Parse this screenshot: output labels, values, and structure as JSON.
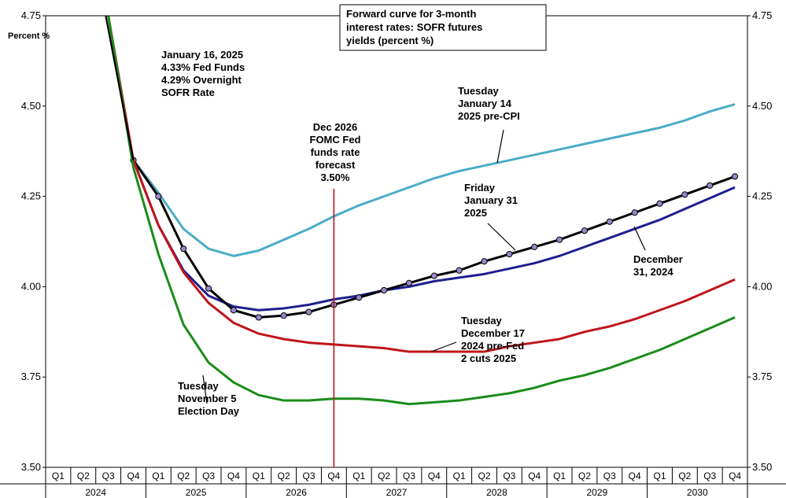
{
  "chart_data": {
    "type": "line",
    "title": "",
    "ylabel": "Percent %",
    "ylim": [
      3.5,
      4.75
    ],
    "yticks": [
      {
        "value": 4.75,
        "label": "4.75"
      },
      {
        "value": 4.5,
        "label": "4.50"
      },
      {
        "value": 4.25,
        "label": "4.25"
      },
      {
        "value": 4.0,
        "label": "4.00"
      },
      {
        "value": 3.75,
        "label": "3.75"
      },
      {
        "value": 3.5,
        "label": "3.50"
      }
    ],
    "years": [
      "2024",
      "2025",
      "2026",
      "2027",
      "2028",
      "2029",
      "2030"
    ],
    "quarters": [
      "Q1",
      "Q2",
      "Q3",
      "Q4"
    ],
    "grid": false,
    "colors": {
      "jan14": "#4bacc6",
      "jan31": "#000000",
      "dec31": "#1f1f8f",
      "dec17": "#c0141c",
      "nov5": "#1a8c1a",
      "fomc": "#c0141c"
    },
    "series": [
      {
        "key": "jan14",
        "name": "Tuesday January 14 2025 pre-CPI",
        "values": [
          null,
          null,
          null,
          4.35,
          4.26,
          4.16,
          4.105,
          4.085,
          4.1,
          4.13,
          4.16,
          4.195,
          4.225,
          4.25,
          4.275,
          4.3,
          4.32,
          4.335,
          4.35,
          4.365,
          4.38,
          4.395,
          4.41,
          4.425,
          4.44,
          4.46,
          4.485,
          4.505
        ]
      },
      {
        "key": "dec31",
        "name": "December 31, 2024",
        "values": [
          null,
          null,
          null,
          4.35,
          4.17,
          4.045,
          3.975,
          3.945,
          3.935,
          3.94,
          3.95,
          3.965,
          3.975,
          3.99,
          4.0,
          4.015,
          4.025,
          4.035,
          4.05,
          4.065,
          4.085,
          4.11,
          4.135,
          4.16,
          4.185,
          4.215,
          4.245,
          4.275
        ]
      },
      {
        "key": "jan31",
        "name": "Friday January 31 2025",
        "markers": true,
        "values": [
          null,
          null,
          null,
          4.35,
          4.25,
          4.105,
          3.995,
          3.935,
          3.915,
          3.92,
          3.93,
          3.95,
          3.97,
          3.99,
          4.01,
          4.03,
          4.045,
          4.07,
          4.09,
          4.11,
          4.13,
          4.155,
          4.18,
          4.205,
          4.23,
          4.255,
          4.28,
          4.305
        ]
      },
      {
        "key": "dec17",
        "name": "Tuesday December 17 2024 pre-Fed 2 cuts 2025",
        "values": [
          null,
          null,
          4.75,
          4.35,
          4.17,
          4.04,
          3.955,
          3.9,
          3.87,
          3.855,
          3.845,
          3.84,
          3.835,
          3.83,
          3.82,
          3.82,
          3.82,
          null,
          null,
          3.845,
          3.855,
          3.875,
          3.89,
          3.91,
          3.935,
          3.96,
          3.99,
          4.02
        ]
      },
      {
        "key": "nov5",
        "name": "Tuesday November 5 Election Day",
        "values": [
          null,
          null,
          4.75,
          4.33,
          4.09,
          3.895,
          3.79,
          3.735,
          3.7,
          3.685,
          3.685,
          3.69,
          3.69,
          3.685,
          3.675,
          3.68,
          3.685,
          3.695,
          3.705,
          3.72,
          3.74,
          3.755,
          3.775,
          3.8,
          3.825,
          3.855,
          3.885,
          3.915
        ]
      }
    ],
    "fomc_marker": {
      "quarter_index": 11
    },
    "annotations": {
      "box": "Forward curve for 3-month interest rates: SOFR futures yields (percent %)",
      "fed": [
        "January 16, 2025",
        "4.33% Fed Funds",
        "4.29% Overnight",
        "SOFR Rate"
      ],
      "fomc": [
        "Dec 2026",
        "FOMC Fed",
        "funds rate",
        "forecast",
        "3.50%"
      ],
      "jan14": [
        "Tuesday",
        "January 14",
        "2025 pre-CPI"
      ],
      "jan31": [
        "Friday",
        "January 31",
        "2025"
      ],
      "dec31": [
        "December",
        "31, 2024"
      ],
      "dec17": [
        "Tuesday",
        "December 17",
        "2024 pre-Fed",
        "2 cuts 2025"
      ],
      "nov5": [
        "Tuesday",
        "November 5",
        "Election Day"
      ]
    }
  }
}
